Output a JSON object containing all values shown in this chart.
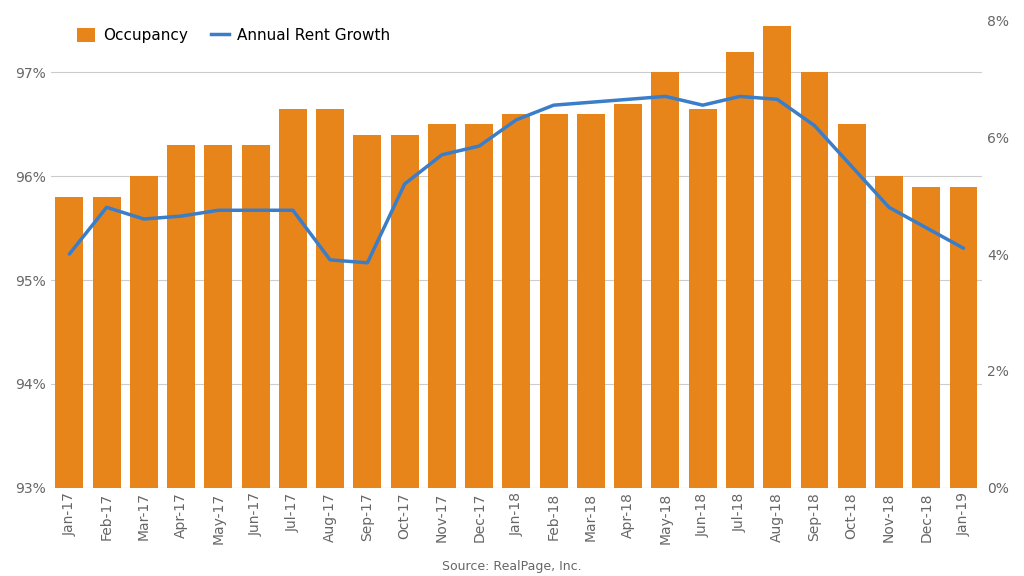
{
  "categories": [
    "Jan-17",
    "Feb-17",
    "Mar-17",
    "Apr-17",
    "May-17",
    "Jun-17",
    "Jul-17",
    "Aug-17",
    "Sep-17",
    "Oct-17",
    "Nov-17",
    "Dec-17",
    "Jan-18",
    "Feb-18",
    "Mar-18",
    "Apr-18",
    "May-18",
    "Jun-18",
    "Jul-18",
    "Aug-18",
    "Sep-18",
    "Oct-18",
    "Nov-18",
    "Dec-18",
    "Jan-19"
  ],
  "occupancy": [
    95.8,
    95.8,
    96.0,
    96.3,
    96.3,
    96.3,
    96.65,
    96.65,
    96.4,
    96.4,
    96.5,
    96.5,
    96.6,
    96.6,
    96.6,
    96.7,
    97.0,
    96.65,
    97.2,
    97.45,
    97.0,
    96.5,
    96.0,
    95.9,
    95.9
  ],
  "rent_growth": [
    4.0,
    4.8,
    4.6,
    4.65,
    4.75,
    4.75,
    4.75,
    3.9,
    3.85,
    5.2,
    5.7,
    5.85,
    6.3,
    6.55,
    6.6,
    6.65,
    6.7,
    6.55,
    6.7,
    6.65,
    6.2,
    5.5,
    4.8,
    4.45,
    4.1
  ],
  "bar_color": "#E8851A",
  "line_color": "#3A7DC9",
  "occ_ylim_min": 93.0,
  "occ_ylim_max": 97.5,
  "rent_ylim_min": 0.0,
  "rent_ylim_max": 8.0,
  "occ_yticks": [
    93,
    94,
    95,
    96,
    97
  ],
  "rent_yticks": [
    0,
    2,
    4,
    6,
    8
  ],
  "source_text": "Source: RealPage, Inc.",
  "legend_occupancy": "Occupancy",
  "legend_rent": "Annual Rent Growth",
  "background_color": "#ffffff",
  "line_width": 2.5,
  "bar_width": 0.75,
  "grid_color": "#cccccc",
  "tick_label_color": "#666666",
  "font_size_tick": 10,
  "font_size_source": 9,
  "font_size_legend": 11
}
